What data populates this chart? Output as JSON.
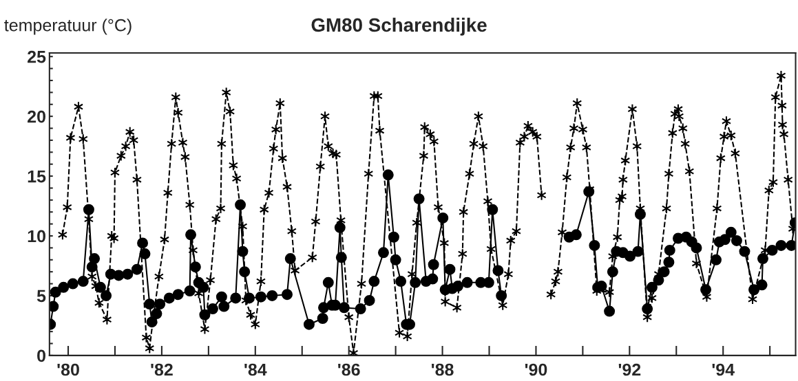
{
  "chart_data": {
    "type": "line",
    "title": "GM80 Scharendijke",
    "ylabel": "temperatuur (°C)",
    "xlim": [
      1979.6,
      1995.55
    ],
    "ylim": [
      0,
      25.3
    ],
    "xticks": [
      {
        "value": 1980,
        "label": "'80"
      },
      {
        "value": 1981,
        "label": null
      },
      {
        "value": 1982,
        "label": "'82"
      },
      {
        "value": 1983,
        "label": null
      },
      {
        "value": 1984,
        "label": "'84"
      },
      {
        "value": 1985,
        "label": null
      },
      {
        "value": 1986,
        "label": "'86"
      },
      {
        "value": 1987,
        "label": null
      },
      {
        "value": 1988,
        "label": "'88"
      },
      {
        "value": 1989,
        "label": null
      },
      {
        "value": 1990,
        "label": "'90"
      },
      {
        "value": 1991,
        "label": null
      },
      {
        "value": 1992,
        "label": "'92"
      },
      {
        "value": 1993,
        "label": null
      },
      {
        "value": 1994,
        "label": "'94"
      },
      {
        "value": 1995,
        "label": null
      }
    ],
    "yticks": [
      0,
      {
        "value": 1,
        "label": null
      },
      {
        "value": 2,
        "label": null
      },
      {
        "value": 3,
        "label": null
      },
      {
        "value": 4,
        "label": null
      },
      5,
      {
        "value": 6,
        "label": null
      },
      {
        "value": 7,
        "label": null
      },
      {
        "value": 8,
        "label": null
      },
      {
        "value": 9,
        "label": null
      },
      10,
      {
        "value": 11,
        "label": null
      },
      {
        "value": 12,
        "label": null
      },
      {
        "value": 13,
        "label": null
      },
      {
        "value": 14,
        "label": null
      },
      15,
      {
        "value": 16,
        "label": null
      },
      {
        "value": 17,
        "label": null
      },
      {
        "value": 18,
        "label": null
      },
      {
        "value": 19,
        "label": null
      },
      20,
      {
        "value": 21,
        "label": null
      },
      {
        "value": 22,
        "label": null
      },
      {
        "value": 23,
        "label": null
      },
      {
        "value": 24,
        "label": null
      },
      25
    ],
    "grid": false,
    "legend": false,
    "series": [
      {
        "color": "#000000",
        "marker": "cross",
        "line_style": "dashed",
        "x": [
          1979.88,
          1979.98,
          1980.05,
          1980.22,
          1980.32,
          1980.44,
          1980.51,
          1980.59,
          1980.66,
          1980.83,
          1980.93,
          1980.98,
          1981.0,
          1981.13,
          1981.23,
          1981.32,
          1981.4,
          1981.47,
          1981.67,
          1981.74,
          1981.81,
          1981.94,
          1982.06,
          1982.13,
          1982.21,
          1982.3,
          1982.35,
          1982.45,
          1982.5,
          1982.6,
          1982.67,
          1982.79,
          1982.92,
          1983.04,
          1983.16,
          1983.26,
          1983.28,
          1983.38,
          1983.46,
          1983.53,
          1983.6,
          1983.73,
          1983.8,
          1983.9,
          1984.0,
          1984.12,
          1984.19,
          1984.29,
          1984.39,
          1984.44,
          1984.53,
          1984.58,
          1984.68,
          1984.78,
          1984.85,
          1985.22,
          1985.29,
          1985.39,
          1985.49,
          1985.56,
          1985.66,
          1985.73,
          1985.83,
          1986.0,
          1986.1,
          1986.27,
          1986.42,
          1986.54,
          1986.62,
          1986.66,
          1987.08,
          1987.25,
          1987.35,
          1987.45,
          1987.6,
          1987.62,
          1987.74,
          1987.82,
          1987.91,
          1988.04,
          1988.06,
          1988.31,
          1988.43,
          1988.45,
          1988.58,
          1988.67,
          1988.77,
          1988.87,
          1988.97,
          1989.04,
          1989.29,
          1989.41,
          1989.46,
          1989.58,
          1989.66,
          1989.75,
          1989.83,
          1989.93,
          1990.02,
          1990.12,
          null,
          1990.32,
          1990.42,
          1990.47,
          1990.56,
          1990.66,
          1990.74,
          1990.81,
          1990.88,
          1991.0,
          1991.08,
          1991.15,
          1991.3,
          1991.57,
          1991.64,
          1991.74,
          1991.79,
          1991.84,
          1991.86,
          1991.91,
          1992.06,
          1992.16,
          1992.23,
          1992.38,
          1992.48,
          1992.62,
          1992.79,
          1992.84,
          1992.92,
          1992.97,
          1993.04,
          1993.06,
          1993.14,
          1993.19,
          1993.28,
          1993.43,
          1993.65,
          1993.87,
          1993.95,
          1994.02,
          1994.07,
          1994.17,
          1994.26,
          1994.63,
          1994.9,
          1994.98,
          1995.07,
          1995.12,
          1995.24,
          1995.26,
          1995.27,
          1995.3,
          1995.39,
          1995.49
        ],
        "values": [
          10.1,
          12.4,
          18.2,
          20.8,
          18.1,
          11.4,
          6.6,
          5.8,
          4.4,
          3.0,
          10.0,
          9.8,
          15.3,
          16.7,
          17.5,
          18.7,
          18.0,
          14.7,
          1.5,
          0.6,
          2.9,
          6.6,
          9.7,
          13.6,
          17.7,
          21.6,
          20.3,
          17.8,
          16.6,
          12.6,
          8.8,
          5.2,
          2.2,
          6.3,
          11.4,
          12.3,
          17.7,
          22.0,
          20.4,
          15.9,
          14.8,
          10.8,
          4.6,
          3.4,
          2.6,
          6.2,
          12.2,
          13.6,
          17.3,
          18.9,
          21.1,
          16.5,
          14.1,
          10.4,
          7.1,
          8.2,
          11.2,
          15.8,
          20.0,
          17.5,
          16.9,
          16.8,
          11.3,
          3.2,
          0.2,
          6.0,
          15.2,
          21.7,
          21.7,
          18.8,
          1.9,
          1.6,
          6.8,
          11.1,
          16.7,
          19.1,
          18.5,
          17.9,
          12.4,
          9.4,
          4.5,
          4.0,
          8.5,
          12.0,
          15.2,
          17.7,
          20.0,
          17.5,
          12.9,
          8.9,
          4.2,
          6.8,
          9.6,
          10.4,
          17.8,
          18.3,
          19.2,
          18.7,
          18.3,
          13.4,
          null,
          5.1,
          6.2,
          7.0,
          10.3,
          14.9,
          17.4,
          19.0,
          21.1,
          18.9,
          17.4,
          13.9,
          5.4,
          5.3,
          8.3,
          9.9,
          13.0,
          13.3,
          14.7,
          16.3,
          20.6,
          17.5,
          12.3,
          3.2,
          4.8,
          6.8,
          12.3,
          15.2,
          18.6,
          20.2,
          20.6,
          20.0,
          19.0,
          17.7,
          15.4,
          7.7,
          4.9,
          12.3,
          16.5,
          18.3,
          19.6,
          18.4,
          16.9,
          4.7,
          8.8,
          13.8,
          14.5,
          21.6,
          23.4,
          20.9,
          19.3,
          18.5,
          14.7,
          10.6
        ]
      },
      {
        "color": "#000000",
        "marker": "circle",
        "line_style": "solid",
        "x": [
          1979.62,
          1979.68,
          1979.73,
          1979.9,
          1980.1,
          1980.32,
          1980.44,
          1980.51,
          1980.56,
          1980.69,
          1980.81,
          1980.91,
          1981.08,
          1981.27,
          1981.47,
          1981.59,
          1981.64,
          1981.74,
          1981.79,
          1981.89,
          1981.96,
          1982.16,
          1982.35,
          1982.6,
          1982.62,
          1982.72,
          1982.79,
          1982.89,
          1982.92,
          1983.09,
          1983.28,
          1983.33,
          1983.58,
          1983.68,
          1983.73,
          1983.77,
          1983.87,
          1984.12,
          1984.36,
          1984.68,
          1984.75,
          1985.15,
          1985.44,
          1985.46,
          1985.56,
          1985.64,
          1985.71,
          1985.81,
          1985.84,
          1985.9,
          1986.25,
          1986.44,
          1986.54,
          1986.74,
          1986.84,
          1986.96,
          1987.0,
          1987.11,
          1987.23,
          1987.3,
          1987.42,
          1987.5,
          1987.65,
          1987.79,
          1987.81,
          1988.01,
          1988.06,
          1988.16,
          1988.21,
          1988.33,
          1988.53,
          1988.82,
          1988.99,
          1989.07,
          1989.19,
          1989.26,
          null,
          1990.71,
          1990.86,
          1991.13,
          1991.25,
          1991.32,
          1991.4,
          1991.57,
          1991.64,
          1991.72,
          1991.86,
          1992.01,
          1992.18,
          1992.23,
          1992.38,
          1992.48,
          1992.62,
          1992.74,
          1992.84,
          1992.86,
          1993.04,
          1993.21,
          1993.33,
          1993.43,
          1993.63,
          1993.85,
          1993.92,
          1994.04,
          1994.17,
          1994.29,
          1994.46,
          1994.66,
          1994.83,
          1994.85,
          1995.05,
          1995.24,
          1995.46,
          1995.54
        ],
        "values": [
          2.6,
          4.1,
          5.3,
          5.7,
          6.0,
          6.2,
          12.2,
          7.4,
          8.1,
          5.7,
          5.0,
          6.8,
          6.7,
          6.8,
          7.2,
          9.4,
          8.5,
          4.3,
          2.8,
          3.5,
          4.3,
          4.8,
          5.1,
          5.4,
          10.1,
          7.4,
          6.1,
          5.7,
          3.4,
          3.9,
          4.9,
          4.1,
          4.8,
          12.6,
          8.7,
          7.0,
          4.8,
          4.9,
          5.0,
          5.1,
          8.1,
          2.6,
          3.1,
          4.0,
          6.1,
          4.2,
          4.2,
          10.7,
          8.2,
          4.0,
          3.9,
          4.6,
          6.2,
          8.6,
          15.1,
          9.9,
          8.0,
          6.2,
          2.6,
          2.6,
          6.1,
          13.1,
          6.2,
          6.4,
          7.6,
          11.5,
          5.5,
          7.2,
          5.6,
          5.8,
          6.1,
          6.1,
          6.1,
          12.2,
          7.1,
          5.0,
          null,
          9.9,
          10.1,
          13.7,
          9.2,
          5.7,
          5.8,
          3.7,
          7.0,
          8.7,
          8.6,
          8.3,
          8.7,
          11.8,
          3.9,
          5.7,
          6.3,
          7.0,
          7.8,
          8.8,
          9.8,
          9.9,
          9.5,
          9.0,
          5.5,
          8.0,
          9.5,
          9.7,
          10.3,
          9.6,
          8.7,
          5.5,
          5.9,
          8.1,
          8.8,
          9.2,
          9.2,
          11.1
        ]
      }
    ]
  }
}
